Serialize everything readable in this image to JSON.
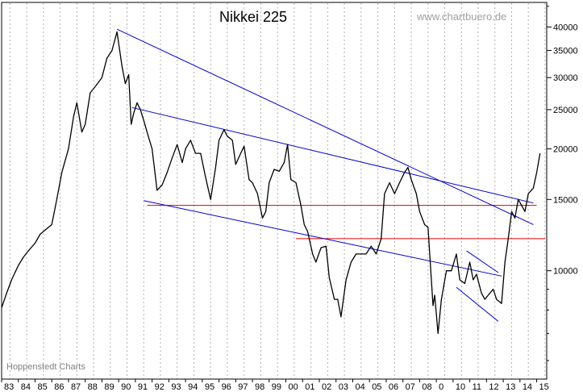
{
  "chart_data": {
    "type": "line",
    "title": "Nikkei 225",
    "watermark": "www.chartbuero.de",
    "source": "Hoppenstedt Charts",
    "y_scale": "log",
    "ylim": [
      5400,
      46000
    ],
    "xlim": [
      1983.0,
      2015.6
    ],
    "y_ticks": [
      10000,
      15000,
      20000,
      25000,
      30000,
      35000,
      40000
    ],
    "y_tick_labels": [
      "10000",
      "15000",
      "20000",
      "25000",
      "30000",
      "35000",
      "40000"
    ],
    "x_tick_labels": [
      "83",
      "84",
      "85",
      "86",
      "87",
      "88",
      "89",
      "90",
      "91",
      "92",
      "93",
      "94",
      "95",
      "96",
      "97",
      "98",
      "99",
      "00",
      "01",
      "02",
      "03",
      "04",
      "05",
      "06",
      "07",
      "08",
      "09",
      "10",
      "11",
      "12",
      "13",
      "14",
      "15"
    ],
    "x_tick_display": [
      "83",
      "84",
      "85",
      "86",
      "87",
      "88",
      "89",
      "90",
      "91",
      "92",
      "93",
      "94",
      "95",
      "96",
      "97",
      "98",
      "99",
      "00",
      "01",
      "02",
      "03",
      "04",
      "05",
      "06",
      "07",
      "08",
      "0",
      "10",
      "11",
      "12",
      "13",
      "14",
      "15"
    ],
    "grid": "vertical dotted",
    "colors": {
      "price": "#000000",
      "trend": "#0000cc",
      "support": "#dd0000",
      "grid": "#b0b0b0"
    },
    "series": [
      {
        "x": [
          1983.0,
          1983.3,
          1983.6,
          1984.0,
          1984.3,
          1984.6,
          1985.0,
          1985.3,
          1985.6,
          1986.0,
          1986.3,
          1986.6,
          1987.0,
          1987.3,
          1987.5,
          1987.8,
          1988.0,
          1988.3,
          1988.6,
          1989.0,
          1989.3,
          1989.6,
          1989.9,
          1990.2,
          1990.4,
          1990.6,
          1990.75,
          1990.9,
          1991.1,
          1991.3,
          1991.5,
          1991.7,
          1992.0,
          1992.3,
          1992.6,
          1992.9,
          1993.2,
          1993.5,
          1993.8,
          1994.0,
          1994.3,
          1994.6,
          1994.9,
          1995.2,
          1995.5,
          1995.8,
          1996.0,
          1996.3,
          1996.5,
          1996.8,
          1997.0,
          1997.3,
          1997.5,
          1997.8,
          1998.0,
          1998.3,
          1998.6,
          1998.8,
          1999.0,
          1999.3,
          1999.6,
          1999.9,
          2000.1,
          2000.3,
          2000.6,
          2000.9,
          2001.1,
          2001.3,
          2001.6,
          2001.8,
          2002.1,
          2002.4,
          2002.6,
          2002.9,
          2003.1,
          2003.3,
          2003.6,
          2003.9,
          2004.2,
          2004.5,
          2004.8,
          2005.1,
          2005.4,
          2005.7,
          2005.9,
          2006.2,
          2006.5,
          2006.8,
          2007.1,
          2007.3,
          2007.5,
          2007.8,
          2008.0,
          2008.3,
          2008.5,
          2008.8,
          2008.9,
          2009.1,
          2009.3,
          2009.6,
          2009.9,
          2010.2,
          2010.4,
          2010.7,
          2011.0,
          2011.2,
          2011.4,
          2011.7,
          2011.9,
          2012.1,
          2012.4,
          2012.6,
          2012.9,
          2013.1,
          2013.3,
          2013.5,
          2013.7,
          2013.9,
          2014.1,
          2014.3,
          2014.5,
          2014.8,
          2015.0,
          2015.2
        ],
        "values": [
          8100,
          8800,
          9500,
          10300,
          10800,
          11200,
          11700,
          12300,
          12600,
          13000,
          15000,
          17500,
          20000,
          24000,
          26000,
          22000,
          23000,
          27500,
          28500,
          30000,
          33500,
          35000,
          38900,
          32000,
          29000,
          30500,
          23000,
          24500,
          26000,
          25000,
          23500,
          22000,
          20000,
          15800,
          16300,
          17500,
          19000,
          20500,
          18500,
          20000,
          21000,
          19500,
          19500,
          17000,
          15000,
          18000,
          21000,
          22300,
          21500,
          21000,
          18300,
          19500,
          20300,
          16800,
          16500,
          15500,
          13500,
          14000,
          16500,
          17800,
          17600,
          18500,
          20500,
          16800,
          16500,
          14500,
          13000,
          12500,
          11000,
          10500,
          11400,
          11500,
          9600,
          8500,
          8500,
          7700,
          9500,
          10500,
          11000,
          11000,
          11000,
          11500,
          11000,
          12000,
          15500,
          16500,
          15500,
          16500,
          17500,
          18000,
          16800,
          15500,
          14000,
          13000,
          12800,
          8200,
          8700,
          7000,
          8500,
          10000,
          10000,
          11000,
          9500,
          9300,
          10500,
          9500,
          9800,
          8800,
          8500,
          8700,
          9000,
          8500,
          8300,
          10500,
          12000,
          14000,
          13500,
          15000,
          14500,
          14000,
          15500,
          16000,
          17500,
          19500
        ]
      }
    ],
    "trend_lines": [
      {
        "x": [
          1989.9,
          2014.8
        ],
        "y": [
          39500,
          13000
        ]
      },
      {
        "x": [
          1990.8,
          2014.8
        ],
        "y": [
          25300,
          14700
        ]
      },
      {
        "x": [
          1991.5,
          2012.9
        ],
        "y": [
          14900,
          9700
        ]
      },
      {
        "x": [
          2010.8,
          2012.7
        ],
        "y": [
          11200,
          9900
        ]
      },
      {
        "x": [
          2010.2,
          2012.7
        ],
        "y": [
          9100,
          7500
        ]
      }
    ],
    "support_lines": [
      {
        "x": [
          1991.7,
          2015.0
        ],
        "y": 14500
      },
      {
        "x": [
          2000.6,
          2015.5
        ],
        "y": 12000
      }
    ]
  }
}
